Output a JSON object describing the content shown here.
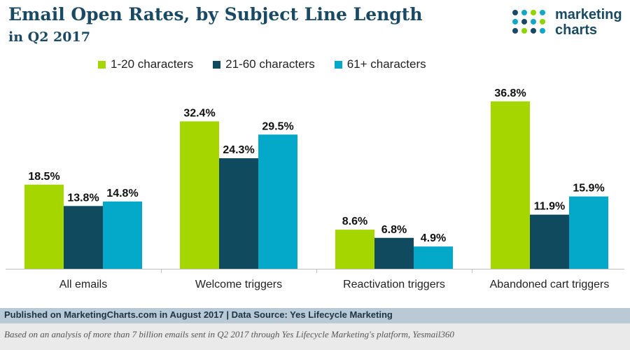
{
  "header": {
    "title": "Email Open Rates, by Subject Line Length",
    "subtitle": "in Q2 2017"
  },
  "logo": {
    "line1": "marketing",
    "line2": "charts",
    "dot_colors": [
      "#1a4a63",
      "#14a5c7",
      "#8fd400"
    ]
  },
  "chart_data": {
    "type": "bar",
    "title": "Email Open Rates, by Subject Line Length",
    "subtitle": "in Q2 2017",
    "categories": [
      "All emails",
      "Welcome triggers",
      "Reactivation triggers",
      "Abandoned cart triggers"
    ],
    "series": [
      {
        "name": "1-20 characters",
        "values": [
          18.5,
          32.4,
          8.6,
          36.8
        ],
        "labels": [
          "18.5%",
          "32.4%",
          "8.6%",
          "36.8%"
        ],
        "color": "#a5d600"
      },
      {
        "name": "21-60 characters",
        "values": [
          13.8,
          24.3,
          6.8,
          11.9
        ],
        "labels": [
          "13.8%",
          "24.3%",
          "6.8%",
          "11.9%"
        ],
        "color": "#0f4a5e"
      },
      {
        "name": "61+ characters",
        "values": [
          14.8,
          29.5,
          4.9,
          15.9
        ],
        "labels": [
          "14.8%",
          "29.5%",
          "4.9%",
          "15.9%"
        ],
        "color": "#04a8c9"
      }
    ],
    "ylim": [
      0,
      40
    ],
    "unit": "%",
    "xlabel": "",
    "ylabel": "",
    "grid": false,
    "legend": "top"
  },
  "footer": {
    "source": "Published on MarketingCharts.com in August 2017 | Data Source: Yes Lifecycle Marketing",
    "note": "Based on an analysis of more than 7 billion emails sent in Q2 2017 through Yes Lifecycle Marketing's platform, Yesmail360"
  }
}
